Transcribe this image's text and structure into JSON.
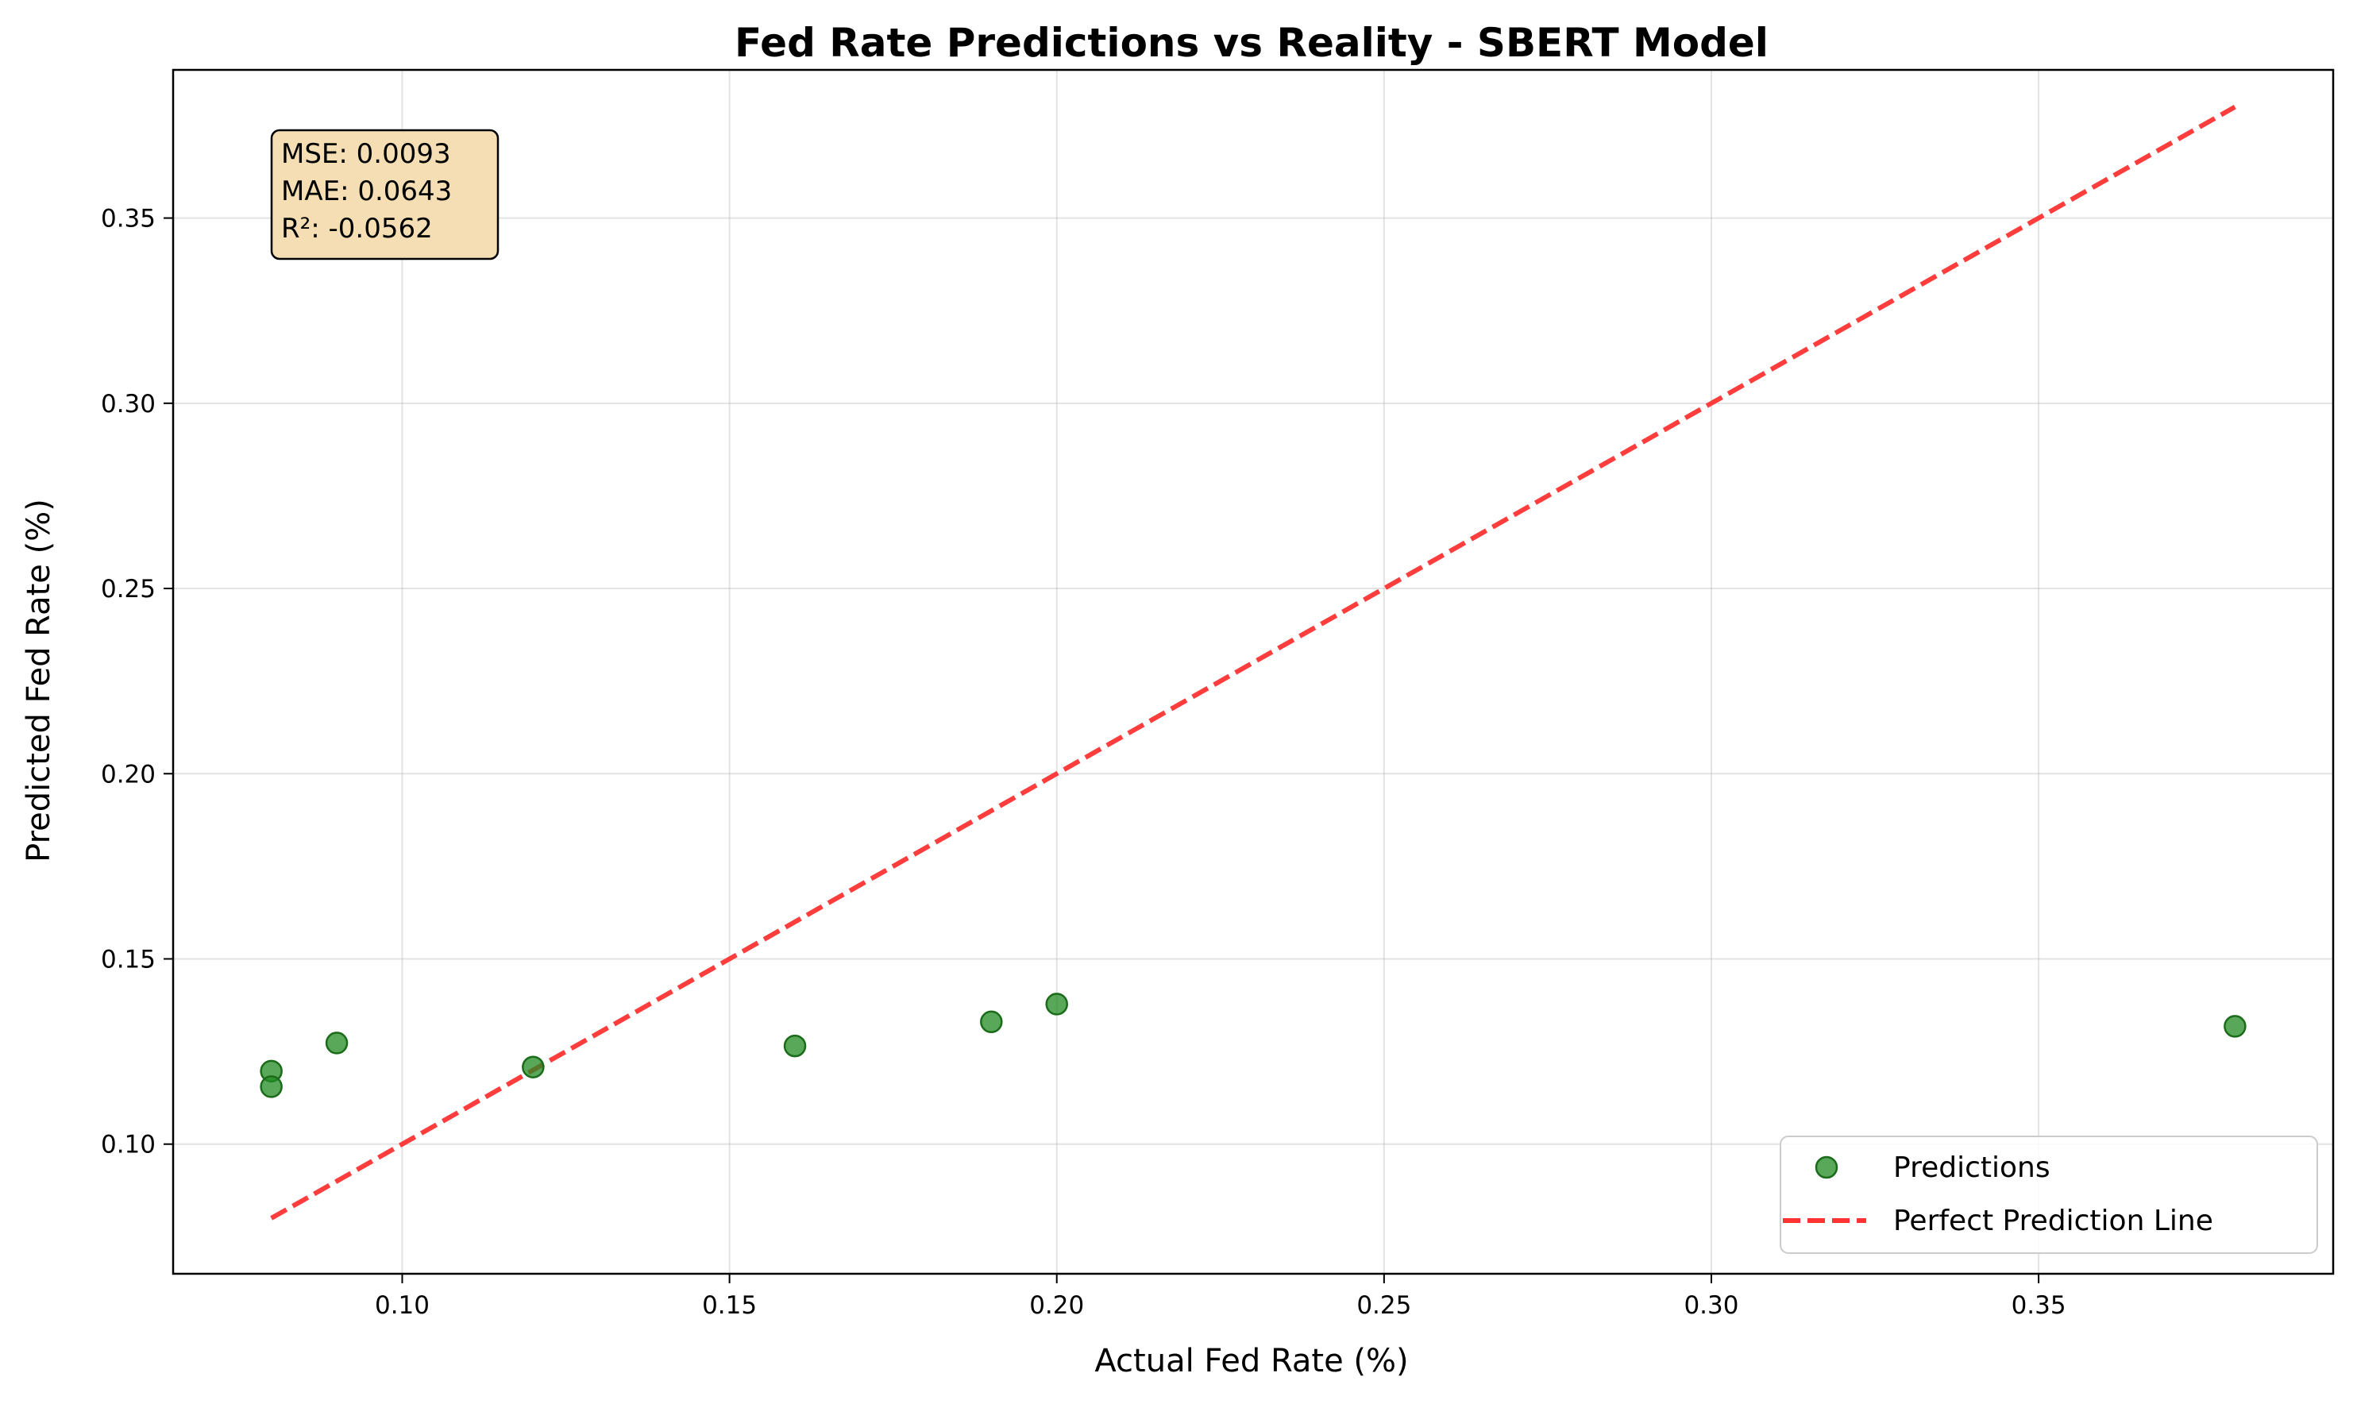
{
  "chart_data": {
    "type": "scatter",
    "title": "Fed Rate Predictions vs Reality - SBERT Model",
    "xlabel": "Actual Fed Rate (%)",
    "ylabel": "Predicted Fed Rate (%)",
    "xlim": [
      0.065,
      0.395
    ],
    "ylim": [
      0.065,
      0.39
    ],
    "x_ticks": [
      0.1,
      0.15,
      0.2,
      0.25,
      0.3,
      0.35
    ],
    "x_tick_labels": [
      "0.10",
      "0.15",
      "0.20",
      "0.25",
      "0.30",
      "0.35"
    ],
    "y_ticks": [
      0.1,
      0.15,
      0.2,
      0.25,
      0.3,
      0.35
    ],
    "y_tick_labels": [
      "0.10",
      "0.15",
      "0.20",
      "0.25",
      "0.30",
      "0.35"
    ],
    "grid": true,
    "legend_position": "bottom-right",
    "series": [
      {
        "name": "Predictions",
        "kind": "scatter",
        "color": "#228B22",
        "points": [
          {
            "x": 0.08,
            "y": 0.1197
          },
          {
            "x": 0.08,
            "y": 0.1155
          },
          {
            "x": 0.09,
            "y": 0.1273
          },
          {
            "x": 0.12,
            "y": 0.1208
          },
          {
            "x": 0.16,
            "y": 0.1265
          },
          {
            "x": 0.19,
            "y": 0.133
          },
          {
            "x": 0.2,
            "y": 0.1378
          },
          {
            "x": 0.38,
            "y": 0.1318
          }
        ]
      },
      {
        "name": "Perfect Prediction Line",
        "kind": "line",
        "style": "dashed",
        "color": "#FF3333",
        "points": [
          {
            "x": 0.08,
            "y": 0.08
          },
          {
            "x": 0.38,
            "y": 0.38
          }
        ]
      }
    ],
    "annotation": {
      "lines": [
        "MSE: 0.0093",
        "MAE: 0.0643",
        "R²: -0.0562"
      ],
      "background": "#F5DEB3"
    }
  }
}
